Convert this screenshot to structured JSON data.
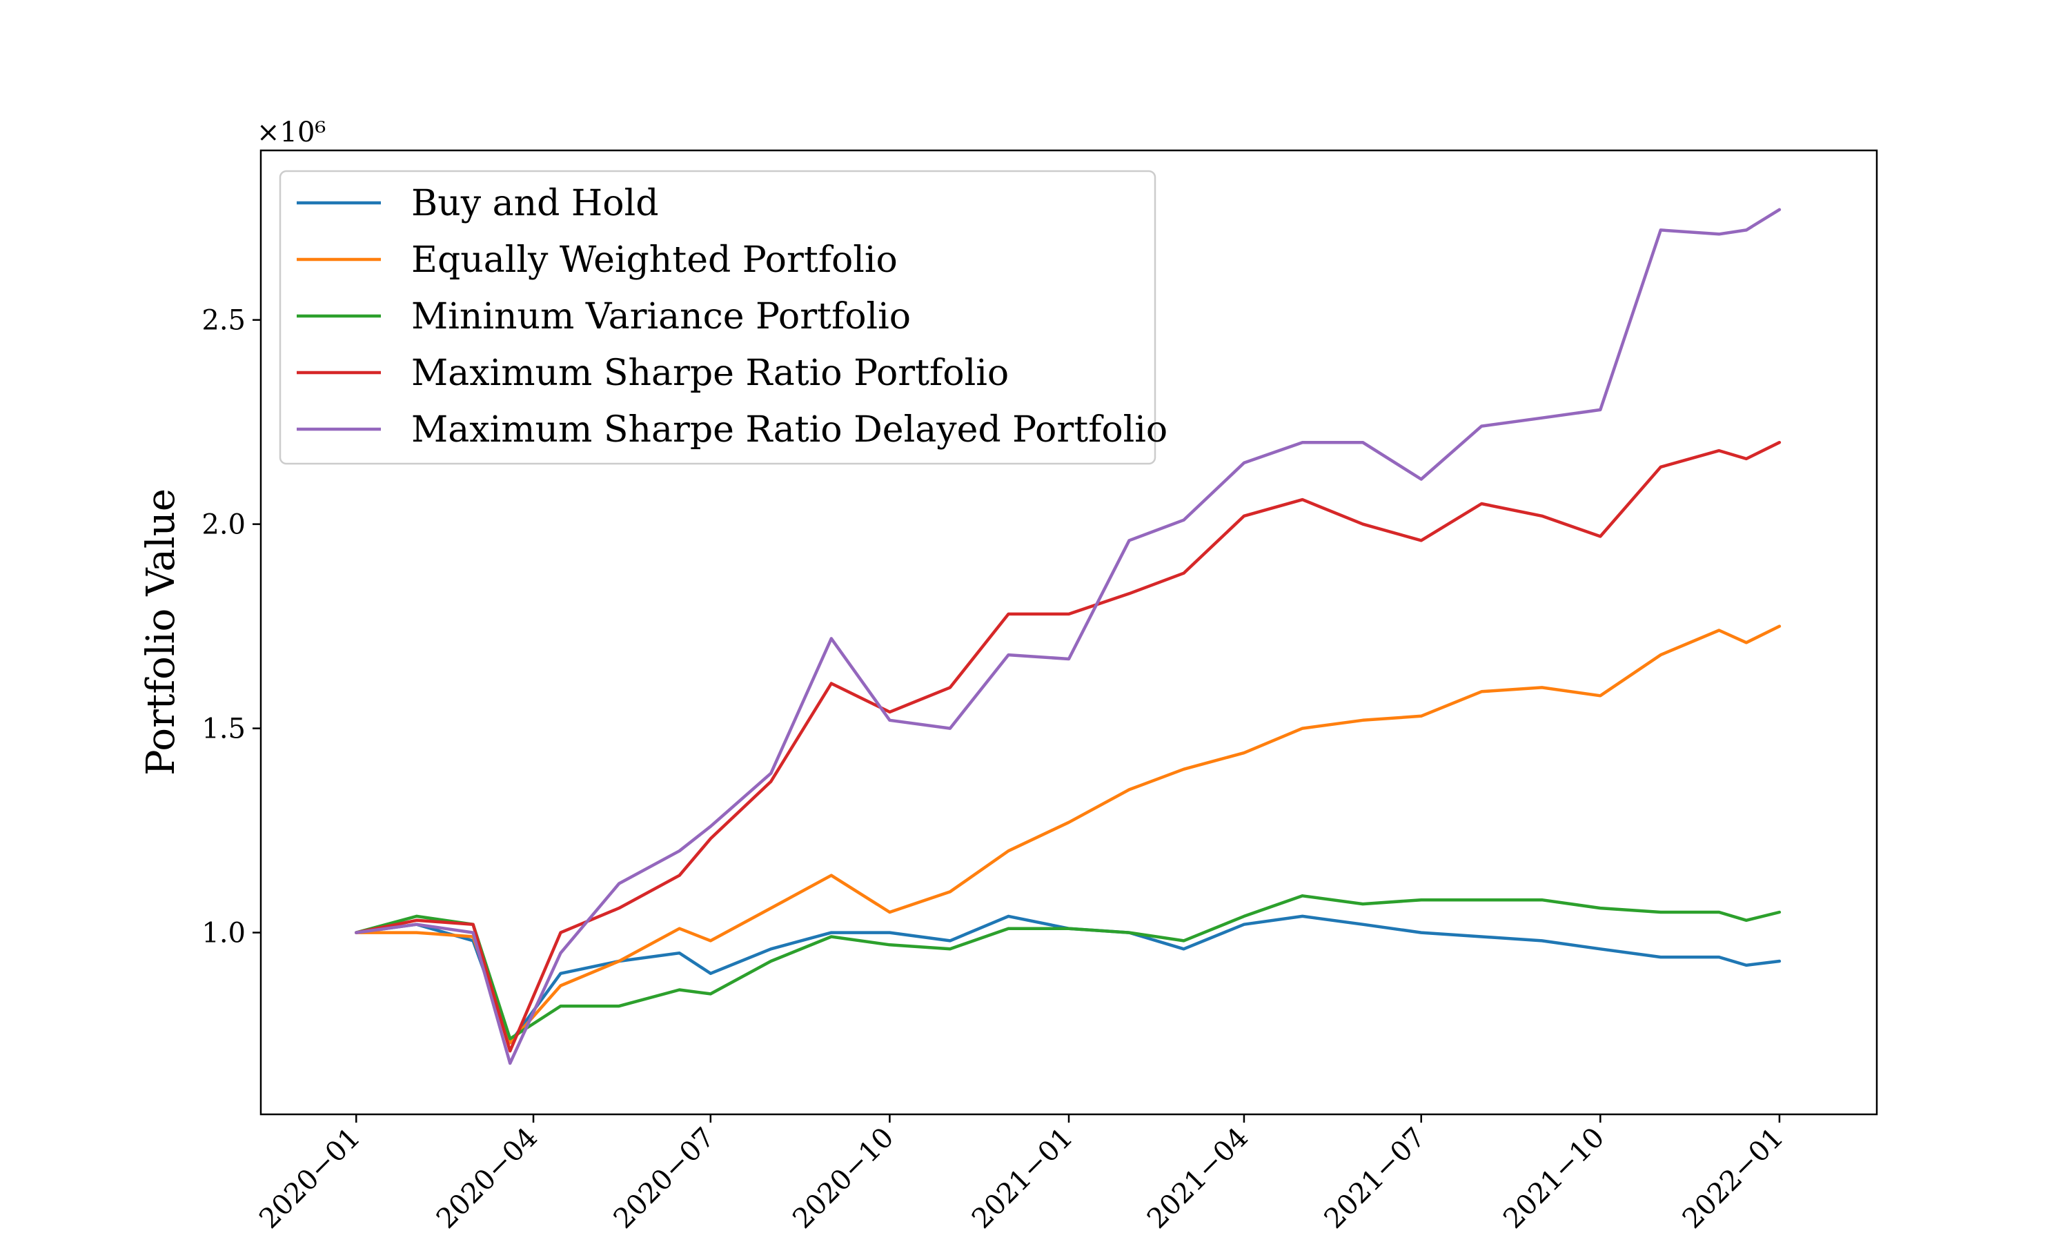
{
  "chart_data": {
    "type": "line",
    "ylabel": "Portfolio Value",
    "xlabel": "",
    "y_offset_label": "×10⁶",
    "x_tick_labels": [
      "2020−01",
      "2020−04",
      "2020−07",
      "2020−10",
      "2021−01",
      "2021−04",
      "2021−07",
      "2021−10",
      "2022−01"
    ],
    "x_ticks": [
      "2020-01-01",
      "2020-04-01",
      "2020-07-01",
      "2020-10-01",
      "2021-01-01",
      "2021-04-01",
      "2021-07-01",
      "2021-10-01",
      "2022-01-01"
    ],
    "y_ticks": [
      1.0,
      1.5,
      2.0,
      2.5
    ],
    "y_tick_labels": [
      "1.0",
      "1.5",
      "2.0",
      "2.5"
    ],
    "xlim": [
      "2019-11-13",
      "2022-02-20"
    ],
    "ylim": [
      0.555,
      2.915
    ],
    "y_unit_multiplier": 1000000,
    "grid": false,
    "legend_position": "upper-left",
    "series": [
      {
        "name": "Buy and Hold",
        "color": "#1f77b4",
        "x": [
          "2020-01-01",
          "2020-02-01",
          "2020-03-01",
          "2020-03-20",
          "2020-04-15",
          "2020-05-15",
          "2020-06-15",
          "2020-07-01",
          "2020-08-01",
          "2020-09-01",
          "2020-10-01",
          "2020-11-01",
          "2020-12-01",
          "2021-01-01",
          "2021-02-01",
          "2021-03-01",
          "2021-04-01",
          "2021-05-01",
          "2021-06-01",
          "2021-07-01",
          "2021-08-01",
          "2021-09-01",
          "2021-10-01",
          "2021-11-01",
          "2021-12-01",
          "2021-12-15",
          "2022-01-01"
        ],
        "y": [
          1.0,
          1.02,
          0.98,
          0.73,
          0.9,
          0.93,
          0.95,
          0.9,
          0.96,
          1.0,
          1.0,
          0.98,
          1.04,
          1.01,
          1.0,
          0.96,
          1.02,
          1.04,
          1.02,
          1.0,
          0.99,
          0.98,
          0.96,
          0.94,
          0.94,
          0.92,
          0.93
        ]
      },
      {
        "name": "Equally Weighted Portfolio",
        "color": "#ff7f0e",
        "x": [
          "2020-01-01",
          "2020-02-01",
          "2020-03-01",
          "2020-03-20",
          "2020-04-15",
          "2020-05-15",
          "2020-06-15",
          "2020-07-01",
          "2020-08-01",
          "2020-09-01",
          "2020-10-01",
          "2020-11-01",
          "2020-12-01",
          "2021-01-01",
          "2021-02-01",
          "2021-03-01",
          "2021-04-01",
          "2021-05-01",
          "2021-06-01",
          "2021-07-01",
          "2021-08-01",
          "2021-09-01",
          "2021-10-01",
          "2021-11-01",
          "2021-12-01",
          "2021-12-15",
          "2022-01-01"
        ],
        "y": [
          1.0,
          1.0,
          0.99,
          0.73,
          0.87,
          0.93,
          1.01,
          0.98,
          1.06,
          1.14,
          1.05,
          1.1,
          1.2,
          1.27,
          1.35,
          1.4,
          1.44,
          1.5,
          1.52,
          1.53,
          1.59,
          1.6,
          1.58,
          1.68,
          1.74,
          1.71,
          1.75
        ]
      },
      {
        "name": "Mininum Variance Portfolio",
        "color": "#2ca02c",
        "x": [
          "2020-01-01",
          "2020-02-01",
          "2020-03-01",
          "2020-03-20",
          "2020-04-15",
          "2020-05-15",
          "2020-06-15",
          "2020-07-01",
          "2020-08-01",
          "2020-09-01",
          "2020-10-01",
          "2020-11-01",
          "2020-12-01",
          "2021-01-01",
          "2021-02-01",
          "2021-03-01",
          "2021-04-01",
          "2021-05-01",
          "2021-06-01",
          "2021-07-01",
          "2021-08-01",
          "2021-09-01",
          "2021-10-01",
          "2021-11-01",
          "2021-12-01",
          "2021-12-15",
          "2022-01-01"
        ],
        "y": [
          1.0,
          1.04,
          1.02,
          0.74,
          0.82,
          0.82,
          0.86,
          0.85,
          0.93,
          0.99,
          0.97,
          0.96,
          1.01,
          1.01,
          1.0,
          0.98,
          1.04,
          1.09,
          1.07,
          1.08,
          1.08,
          1.08,
          1.06,
          1.05,
          1.05,
          1.03,
          1.05
        ]
      },
      {
        "name": "Maximum Sharpe Ratio Portfolio",
        "color": "#d62728",
        "x": [
          "2020-01-01",
          "2020-02-01",
          "2020-03-01",
          "2020-03-20",
          "2020-04-15",
          "2020-05-15",
          "2020-06-15",
          "2020-07-01",
          "2020-08-01",
          "2020-09-01",
          "2020-10-01",
          "2020-11-01",
          "2020-12-01",
          "2021-01-01",
          "2021-02-01",
          "2021-03-01",
          "2021-04-01",
          "2021-05-01",
          "2021-06-01",
          "2021-07-01",
          "2021-08-01",
          "2021-09-01",
          "2021-10-01",
          "2021-11-01",
          "2021-12-01",
          "2021-12-15",
          "2022-01-01"
        ],
        "y": [
          1.0,
          1.03,
          1.02,
          0.71,
          1.0,
          1.06,
          1.14,
          1.23,
          1.37,
          1.61,
          1.54,
          1.6,
          1.78,
          1.78,
          1.83,
          1.88,
          2.02,
          2.06,
          2.0,
          1.96,
          2.05,
          2.02,
          1.97,
          2.14,
          2.18,
          2.16,
          2.2
        ]
      },
      {
        "name": "Maximum Sharpe Ratio Delayed Portfolio",
        "color": "#9467bd",
        "x": [
          "2020-01-01",
          "2020-02-01",
          "2020-03-01",
          "2020-03-20",
          "2020-04-15",
          "2020-05-15",
          "2020-06-15",
          "2020-07-01",
          "2020-08-01",
          "2020-09-01",
          "2020-10-01",
          "2020-11-01",
          "2020-12-01",
          "2021-01-01",
          "2021-02-01",
          "2021-03-01",
          "2021-04-01",
          "2021-05-01",
          "2021-06-01",
          "2021-07-01",
          "2021-08-01",
          "2021-09-01",
          "2021-10-01",
          "2021-11-01",
          "2021-12-01",
          "2021-12-15",
          "2022-01-01"
        ],
        "y": [
          1.0,
          1.02,
          1.0,
          0.68,
          0.95,
          1.12,
          1.2,
          1.26,
          1.39,
          1.72,
          1.52,
          1.5,
          1.68,
          1.67,
          1.96,
          2.01,
          2.15,
          2.2,
          2.2,
          2.11,
          2.24,
          2.26,
          2.28,
          2.72,
          2.71,
          2.72,
          2.77
        ]
      }
    ]
  }
}
